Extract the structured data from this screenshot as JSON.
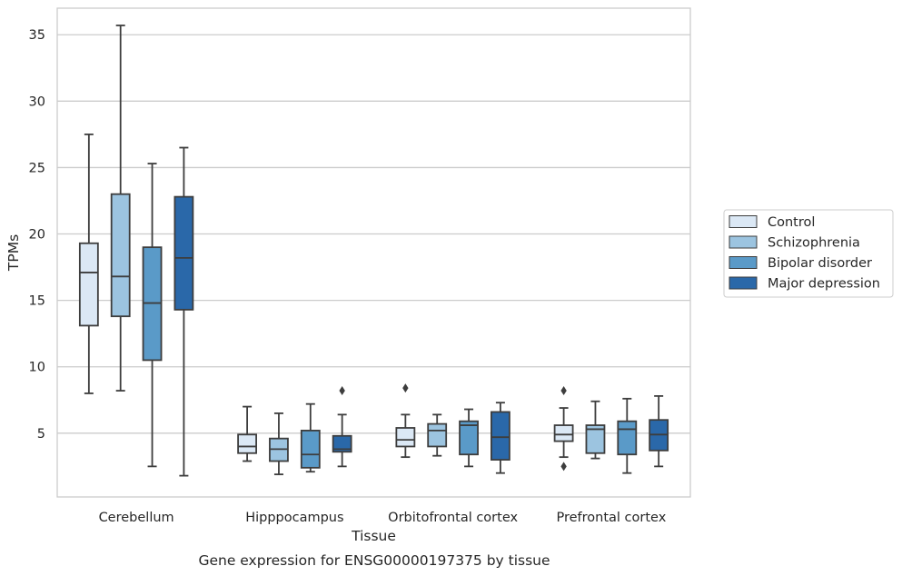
{
  "chart_data": {
    "type": "box",
    "title": "",
    "caption": "Gene expression for ENSG00000197375 by tissue",
    "xlabel": "Tissue",
    "ylabel": "TPMs",
    "ylim": [
      0.2,
      37.0
    ],
    "yticks": [
      5,
      10,
      15,
      20,
      25,
      30,
      35
    ],
    "grid": "horizontal",
    "legend_position": "right",
    "categories": [
      "Cerebellum",
      "Hipppocampus",
      "Orbitofrontal cortex",
      "Prefrontal cortex"
    ],
    "series": [
      {
        "name": "Control",
        "color": "#dbe8f5",
        "boxes": [
          {
            "whisker_low": 8.0,
            "q1": 13.1,
            "median": 17.1,
            "q3": 19.3,
            "whisker_high": 27.5,
            "outliers": []
          },
          {
            "whisker_low": 2.9,
            "q1": 3.5,
            "median": 4.0,
            "q3": 4.9,
            "whisker_high": 7.0,
            "outliers": []
          },
          {
            "whisker_low": 3.2,
            "q1": 4.0,
            "median": 4.5,
            "q3": 5.4,
            "whisker_high": 6.4,
            "outliers": [
              8.4
            ]
          },
          {
            "whisker_low": 3.2,
            "q1": 4.4,
            "median": 4.9,
            "q3": 5.6,
            "whisker_high": 6.9,
            "outliers": [
              8.2,
              2.5
            ]
          }
        ]
      },
      {
        "name": "Schizophrenia",
        "color": "#9cc4e0",
        "boxes": [
          {
            "whisker_low": 8.2,
            "q1": 13.8,
            "median": 16.8,
            "q3": 23.0,
            "whisker_high": 35.7,
            "outliers": []
          },
          {
            "whisker_low": 1.9,
            "q1": 2.9,
            "median": 3.8,
            "q3": 4.6,
            "whisker_high": 6.5,
            "outliers": []
          },
          {
            "whisker_low": 3.3,
            "q1": 4.0,
            "median": 5.2,
            "q3": 5.7,
            "whisker_high": 6.4,
            "outliers": []
          },
          {
            "whisker_low": 3.1,
            "q1": 3.5,
            "median": 5.3,
            "q3": 5.6,
            "whisker_high": 7.4,
            "outliers": []
          }
        ]
      },
      {
        "name": "Bipolar disorder",
        "color": "#5a9ac8",
        "boxes": [
          {
            "whisker_low": 2.5,
            "q1": 10.5,
            "median": 14.8,
            "q3": 19.0,
            "whisker_high": 25.3,
            "outliers": []
          },
          {
            "whisker_low": 2.1,
            "q1": 2.4,
            "median": 3.4,
            "q3": 5.2,
            "whisker_high": 7.2,
            "outliers": []
          },
          {
            "whisker_low": 2.5,
            "q1": 3.4,
            "median": 5.6,
            "q3": 5.9,
            "whisker_high": 6.8,
            "outliers": []
          },
          {
            "whisker_low": 2.0,
            "q1": 3.4,
            "median": 5.3,
            "q3": 5.9,
            "whisker_high": 7.6,
            "outliers": []
          }
        ]
      },
      {
        "name": "Major depression",
        "color": "#2a68a9",
        "boxes": [
          {
            "whisker_low": 1.8,
            "q1": 14.3,
            "median": 18.2,
            "q3": 22.8,
            "whisker_high": 26.5,
            "outliers": []
          },
          {
            "whisker_low": 2.5,
            "q1": 3.6,
            "median": 3.8,
            "q3": 4.8,
            "whisker_high": 6.4,
            "outliers": [
              8.2
            ]
          },
          {
            "whisker_low": 2.0,
            "q1": 3.0,
            "median": 4.7,
            "q3": 6.6,
            "whisker_high": 7.3,
            "outliers": []
          },
          {
            "whisker_low": 2.5,
            "q1": 3.7,
            "median": 4.9,
            "q3": 6.0,
            "whisker_high": 7.8,
            "outliers": []
          }
        ]
      }
    ]
  }
}
